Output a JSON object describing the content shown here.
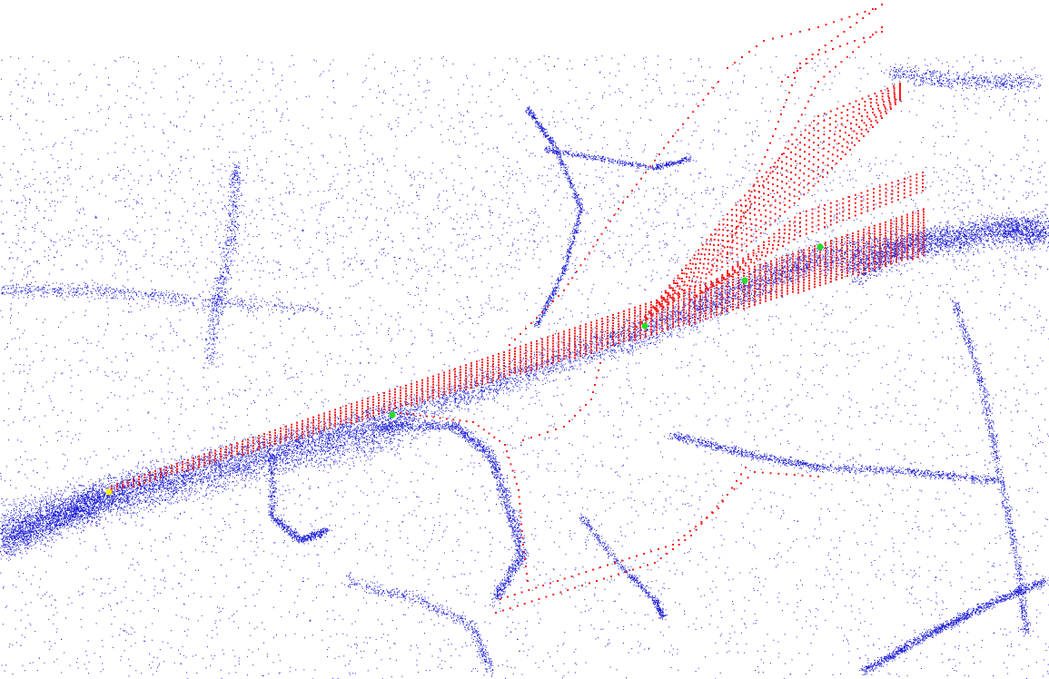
{
  "scene": {
    "background_color": "#ffffff",
    "map_point_color": "#1a1ad6",
    "trajectory_point_color": "#ff1a1a",
    "keyframe_color": "#22e022",
    "start_marker_color": "#ffee00",
    "icons": [
      "map-point-cloud",
      "camera-trajectory",
      "keyframe-marker",
      "start-marker"
    ]
  }
}
